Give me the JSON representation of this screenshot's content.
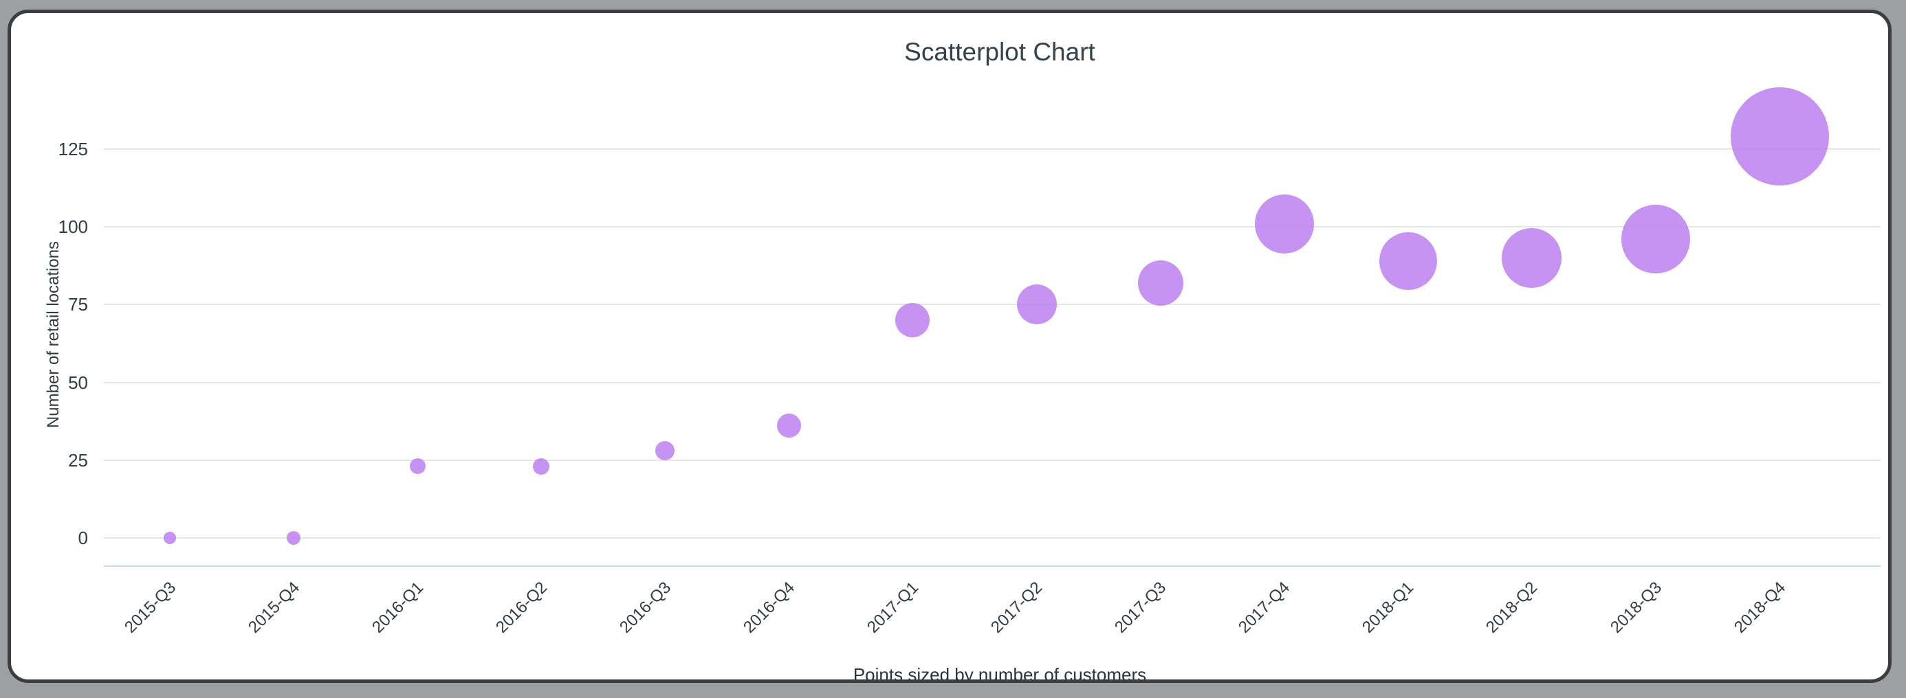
{
  "window": {
    "background_color": "#9da0a3",
    "card_background": "#ffffff",
    "card_border_color": "#3a3d41"
  },
  "chart_data": {
    "type": "scatter",
    "title": "Scatterplot Chart",
    "xlabel": "",
    "ylabel": "Number of retail locations",
    "caption": "Points sized by number of customers",
    "categories": [
      "2015-Q3",
      "2015-Q4",
      "2016-Q1",
      "2016-Q2",
      "2016-Q3",
      "2016-Q4",
      "2017-Q1",
      "2017-Q2",
      "2017-Q3",
      "2017-Q4",
      "2018-Q1",
      "2018-Q2",
      "2018-Q3",
      "2018-Q4"
    ],
    "series": [
      {
        "name": "Number of retail locations",
        "values": [
          0,
          0,
          23,
          23,
          28,
          36,
          70,
          75,
          82,
          101,
          89,
          90,
          96,
          129
        ],
        "point_radius_px": [
          9,
          10,
          11.5,
          12,
          14,
          17.5,
          25,
          29,
          33,
          43,
          42,
          43.5,
          50,
          71.5
        ],
        "size_encodes": "number of customers"
      }
    ],
    "yticks": [
      0,
      25,
      50,
      75,
      100,
      125
    ],
    "ylim": [
      -9,
      141
    ],
    "grid": true,
    "legend": false,
    "x_label_rotation_deg": -45,
    "point_color": "rgba(188,128,240,0.85)",
    "point_color_flat": "#c896f2",
    "gridline_color": "#e6e6e6",
    "axis_line_color": "#ccd6eb",
    "text_color": "#333b44"
  }
}
